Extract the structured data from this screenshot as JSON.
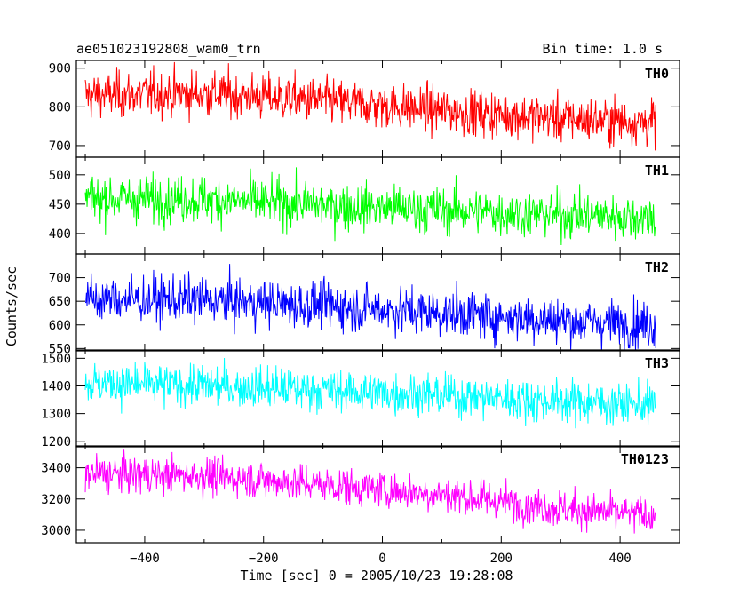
{
  "header": {
    "title": "ae051023192808_wam0_trn",
    "bin_time": "Bin time: 1.0 s"
  },
  "axes": {
    "xlabel": "Time [sec] 0 = 2005/10/23 19:28:08",
    "ylabel": "Counts/sec"
  },
  "chart_data": {
    "type": "line",
    "title": "ae051023192808_wam0_trn",
    "subtitle": "Bin time: 1.0 s",
    "xlabel": "Time [sec] 0 = 2005/10/23 19:28:08",
    "ylabel": "Counts/sec",
    "xlim": [
      -515,
      500
    ],
    "xticks": [
      -400,
      -200,
      0,
      200,
      400
    ],
    "x_range": [
      -500,
      460
    ],
    "bin_time_s": 1.0,
    "grid": false,
    "series": [
      {
        "name": "TH0",
        "color": "#ff0000",
        "ylim": [
          670,
          920
        ],
        "yticks": [
          700,
          800,
          900
        ],
        "approx_trend": {
          "x": [
            -500,
            -300,
            -100,
            100,
            300,
            460
          ],
          "y": [
            830,
            835,
            815,
            790,
            770,
            760
          ]
        },
        "approx_noise_sigma": 30
      },
      {
        "name": "TH1",
        "color": "#00ff00",
        "ylim": [
          365,
          530
        ],
        "yticks": [
          400,
          450,
          500
        ],
        "approx_trend": {
          "x": [
            -500,
            -300,
            -100,
            100,
            300,
            460
          ],
          "y": [
            460,
            458,
            448,
            440,
            432,
            428
          ]
        },
        "approx_noise_sigma": 20
      },
      {
        "name": "TH2",
        "color": "#0000ff",
        "ylim": [
          545,
          750
        ],
        "yticks": [
          550,
          600,
          650,
          700
        ],
        "approx_trend": {
          "x": [
            -500,
            -300,
            -100,
            100,
            300,
            460
          ],
          "y": [
            655,
            652,
            640,
            625,
            610,
            600
          ]
        },
        "approx_noise_sigma": 25
      },
      {
        "name": "TH3",
        "color": "#00ffff",
        "ylim": [
          1180,
          1530
        ],
        "yticks": [
          1200,
          1300,
          1400,
          1500
        ],
        "approx_trend": {
          "x": [
            -500,
            -300,
            -100,
            100,
            300,
            460
          ],
          "y": [
            1410,
            1400,
            1385,
            1365,
            1345,
            1330
          ]
        },
        "approx_noise_sigma": 38
      },
      {
        "name": "TH0123",
        "color": "#ff00ff",
        "ylim": [
          2920,
          3540
        ],
        "yticks": [
          3000,
          3200,
          3400
        ],
        "approx_trend": {
          "x": [
            -500,
            -300,
            -100,
            100,
            300,
            460
          ],
          "y": [
            3360,
            3350,
            3290,
            3230,
            3140,
            3090
          ]
        },
        "approx_noise_sigma": 60
      }
    ]
  }
}
